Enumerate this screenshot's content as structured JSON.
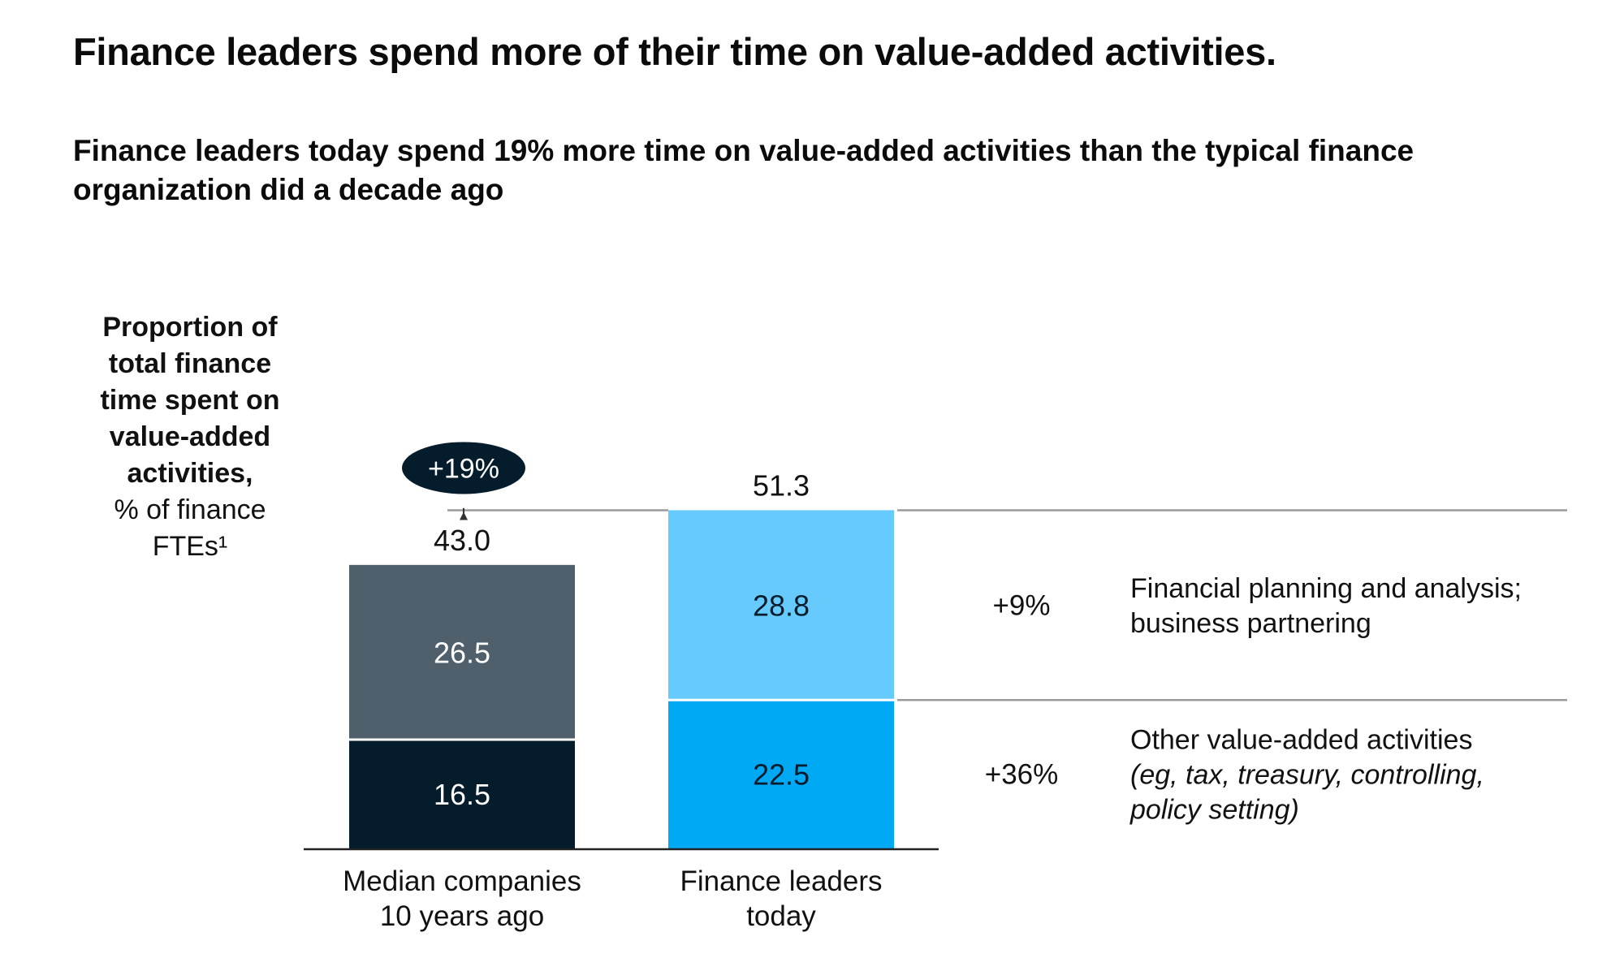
{
  "chart_data": {
    "type": "bar",
    "stacked": true,
    "title": "Finance leaders spend more of their time on value-added activities.",
    "subtitle": "Finance leaders today spend 19% more time on value-added activities than the typical finance organization did a decade ago",
    "ylabel_bold": [
      "Proportion of",
      "total finance",
      "time spent on",
      "value-added",
      "activities,"
    ],
    "ylabel_regular": [
      "% of finance",
      "FTEs¹"
    ],
    "categories": [
      [
        "Median companies",
        "10 years ago"
      ],
      [
        "Finance leaders",
        "today"
      ]
    ],
    "totals": [
      "43.0",
      "51.3"
    ],
    "total_change": "+19%",
    "series": [
      {
        "name": "Other value-added activities",
        "name_detail": [
          "(eg, tax, treasury, controlling,",
          "policy setting)"
        ],
        "change": "+36%",
        "values": [
          16.5,
          22.5
        ],
        "labels": [
          "16.5",
          "22.5"
        ],
        "colors": [
          "#051c2c",
          "#00a9f4"
        ],
        "label_colors": [
          "#ffffff",
          "#051c2c"
        ]
      },
      {
        "name": "Financial planning and analysis;",
        "name_detail": [
          "business partnering"
        ],
        "change": "+9%",
        "values": [
          26.5,
          28.8
        ],
        "labels": [
          "26.5",
          "28.8"
        ],
        "colors": [
          "#4f5f6b",
          "#66cbfc"
        ],
        "label_colors": [
          "#ffffff",
          "#051c2c"
        ]
      }
    ],
    "ylim": [
      0,
      60
    ],
    "grid": false,
    "legend": "right"
  },
  "colors": {
    "badge": "#051c2c",
    "reference_line": "#9a9a9a",
    "axis": "#222222"
  }
}
